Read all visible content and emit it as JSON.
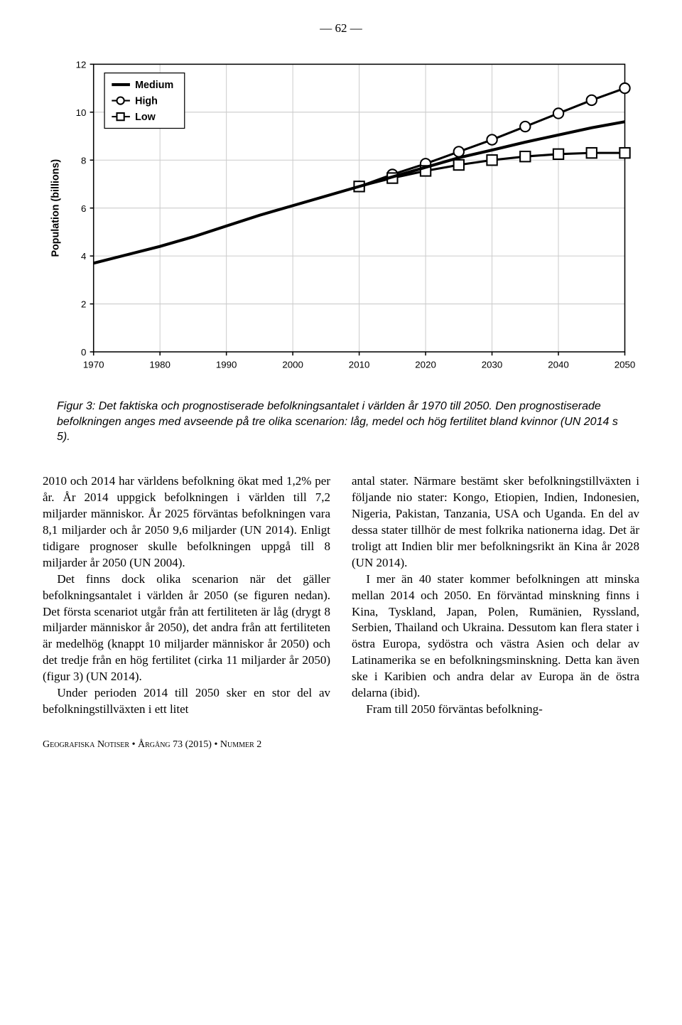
{
  "page_number": "— 62 —",
  "chart": {
    "type": "line",
    "xlim": [
      1970,
      2050
    ],
    "ylim": [
      0,
      12
    ],
    "xtick_step": 10,
    "ytick_step": 2,
    "xticks": [
      "1970",
      "1980",
      "1990",
      "2000",
      "2010",
      "2020",
      "2030",
      "2040",
      "2050"
    ],
    "yticks": [
      "0",
      "2",
      "4",
      "6",
      "8",
      "10",
      "12"
    ],
    "ylabel": "Population (billions)",
    "ylabel_fontsize": 14,
    "tick_fontsize": 13,
    "background_color": "#ffffff",
    "border_color": "#000000",
    "grid_color": "#cccccc",
    "line_width": 3,
    "marker_size": 7,
    "legend": {
      "position": "top-left",
      "items": [
        {
          "label": "Medium",
          "marker": "line",
          "color": "#000000"
        },
        {
          "label": "High",
          "marker": "circle",
          "color": "#000000"
        },
        {
          "label": "Low",
          "marker": "square",
          "color": "#000000"
        }
      ],
      "fontsize": 14,
      "border_color": "#000000"
    },
    "series": [
      {
        "name": "High",
        "marker": "circle",
        "color": "#000000",
        "years": [
          2010,
          2015,
          2020,
          2025,
          2030,
          2035,
          2040,
          2045,
          2050
        ],
        "values": [
          6.9,
          7.4,
          7.85,
          8.35,
          8.85,
          9.4,
          9.95,
          10.5,
          11.0
        ]
      },
      {
        "name": "Low",
        "marker": "square",
        "color": "#000000",
        "years": [
          2010,
          2015,
          2020,
          2025,
          2030,
          2035,
          2040,
          2045,
          2050
        ],
        "values": [
          6.9,
          7.25,
          7.55,
          7.8,
          8.0,
          8.15,
          8.25,
          8.3,
          8.3
        ]
      },
      {
        "name": "Medium",
        "marker": "none",
        "color": "#000000",
        "width": 4,
        "years": [
          1970,
          1975,
          1980,
          1985,
          1990,
          1995,
          2000,
          2005,
          2010,
          2015,
          2020,
          2025,
          2030,
          2035,
          2040,
          2045,
          2050
        ],
        "values": [
          3.7,
          4.05,
          4.4,
          4.8,
          5.25,
          5.7,
          6.1,
          6.5,
          6.9,
          7.3,
          7.7,
          8.1,
          8.42,
          8.75,
          9.05,
          9.35,
          9.6
        ]
      }
    ]
  },
  "caption": "Figur 3: Det faktiska och prognostiserade befolkningsantalet i världen år 1970 till 2050. Den prognostiserade befolkningen anges med avseende på tre olika scenarion: låg, medel och hög fertilitet bland kvinnor (UN 2014 s 5).",
  "body": {
    "left": [
      "2010 och 2014 har världens befolkning ökat med 1,2% per år. År 2014 uppgick befolkningen i världen till 7,2 miljarder människor. År 2025 förväntas befolkningen vara 8,1 miljarder och år 2050 9,6 miljarder (UN 2014). Enligt tidigare prognoser skulle befolkningen uppgå till 8 miljarder år 2050 (UN 2004).",
      "Det finns dock olika scenarion när det gäller befolkningsantalet i världen år 2050 (se figuren nedan). Det första scenariot utgår från att fertiliteten är låg (drygt 8 miljarder människor år 2050), det andra från att fertiliteten är medelhög (knappt 10 miljarder människor år 2050) och det tredje från en hög fertilitet (cirka 11 miljarder år 2050) (figur 3) (UN 2014).",
      "Under perioden 2014 till 2050 sker en stor del av befolkningstillväxten i ett litet"
    ],
    "right": [
      "antal stater. Närmare bestämt sker befolkningstillväxten i följande nio stater: Kongo, Etiopien, Indien, Indonesien, Nigeria, Pakistan, Tanzania, USA och Uganda. En del av dessa stater tillhör de mest folkrika nationerna idag. Det är troligt att Indien blir mer befolkningsrikt än Kina år 2028 (UN 2014).",
      "I mer än 40 stater kommer befolkningen att minska mellan 2014 och 2050. En förväntad minskning finns i Kina, Tyskland, Japan, Polen, Rumänien, Ryssland, Serbien, Thailand och Ukraina. Dessutom kan flera stater i östra Europa, sydöstra och västra Asien och delar av Latinamerika se en befolkningsminskning. Detta kan även ske i Karibien och andra delar av Europa än de östra delarna (ibid).",
      "Fram till 2050 förväntas befolkning-"
    ]
  },
  "footer": {
    "journal": "Geografiska Notiser",
    "sep": " • ",
    "year_label": "Årgång",
    "volume": "73 (2015)",
    "issue_label": "Nummer",
    "issue": "2"
  }
}
